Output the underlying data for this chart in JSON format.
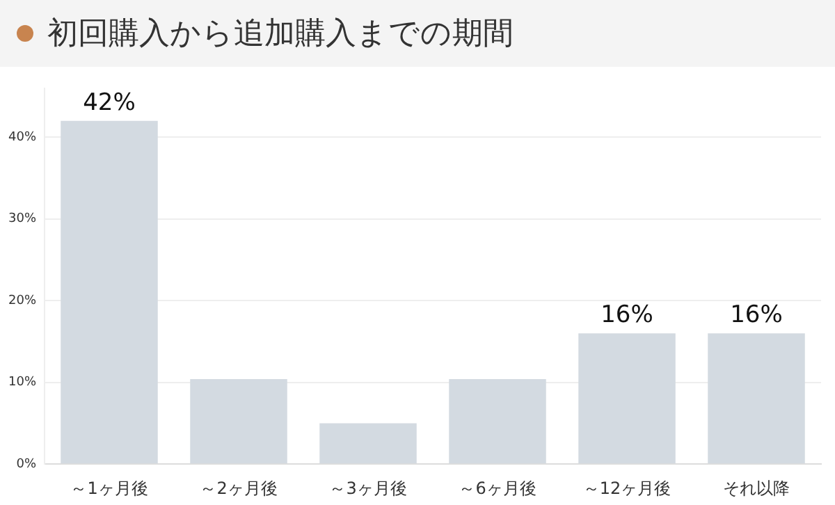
{
  "chart_data": {
    "type": "bar",
    "title": "初回購入から追加購入までの期間",
    "categories": [
      "～1ヶ月後",
      "～2ヶ月後",
      "～3ヶ月後",
      "～6ヶ月後",
      "～12ヶ月後",
      "それ以降"
    ],
    "values": [
      42,
      10.4,
      5,
      10.4,
      16,
      16
    ],
    "value_labels": [
      "42%",
      null,
      null,
      null,
      "16%",
      "16%"
    ],
    "color": "#d3dae1",
    "ylim": [
      0,
      46
    ],
    "yticks": [
      {
        "value": 0,
        "label": "0%"
      },
      {
        "value": 10,
        "label": "10%"
      },
      {
        "value": 20,
        "label": "20%"
      },
      {
        "value": 30,
        "label": "30%"
      },
      {
        "value": 40,
        "label": "40%"
      }
    ],
    "grid": "y",
    "legend": false
  }
}
